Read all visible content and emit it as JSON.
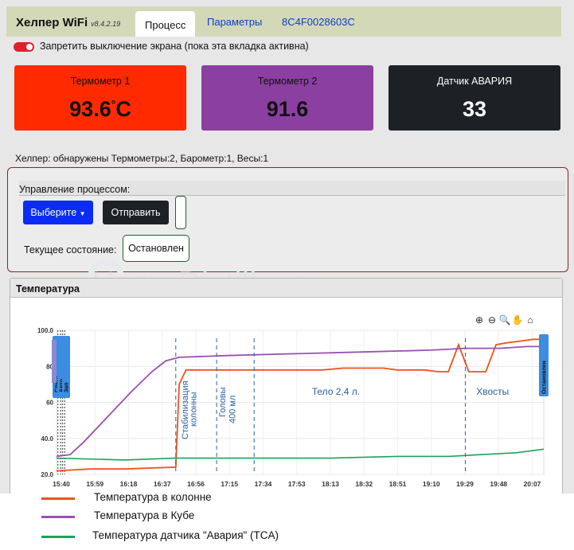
{
  "header": {
    "brand": "Хелпер WiFi",
    "version": "v8.4.2.19",
    "tabs": [
      {
        "label": "Процесс",
        "active": true
      },
      {
        "label": "Параметры",
        "active": false
      },
      {
        "label": "8C4F0028603C",
        "active": false
      }
    ]
  },
  "screen_toggle": {
    "label": "Запретить выключение экрана (пока эта вкладка активна)",
    "on": true
  },
  "cards": [
    {
      "label": "Термометр 1",
      "value": "93.6",
      "unit": "C",
      "bg": "#ff2a00",
      "fg": "#111111"
    },
    {
      "label": "Термометр 2",
      "value": "91.6",
      "bg": "#8b3fa0",
      "fg": "#111111"
    },
    {
      "label": "Датчик АВАРИЯ",
      "value": "33",
      "bg": "#1d2024",
      "fg": "#ffffff"
    }
  ],
  "detected": "Хелпер: обнаружены Термометры:2, Барометр:1, Весы:1",
  "process": {
    "title": "Управление процессом:",
    "select_label": "Выберите",
    "send_label": "Отправить",
    "state_label": "Текущее состояние:",
    "state_value": "Остановлен"
  },
  "temperature_panel": {
    "title": "Температура"
  },
  "watermark": "HomeDistiller.ru",
  "chart_toolbar": [
    "zoom-in-icon",
    "zoom-out-icon",
    "zoom-icon",
    "pan-icon",
    "home-icon"
  ],
  "chart_data": {
    "type": "line",
    "ylim": [
      20,
      100
    ],
    "yticks": [
      "20.0",
      "40.0",
      "60",
      "80",
      "100.0"
    ],
    "xticks": [
      "15:40",
      "15:59",
      "16:18",
      "16:37",
      "16:56",
      "17:15",
      "17:34",
      "17:53",
      "18:13",
      "18:32",
      "18:51",
      "19:10",
      "19:29",
      "19:48",
      "20:07"
    ],
    "series": [
      {
        "name": "Температура в колонне",
        "color": "#f0521e",
        "points": [
          [
            0,
            22
          ],
          [
            10,
            23
          ],
          [
            20,
            23
          ],
          [
            35,
            24
          ],
          [
            36,
            70
          ],
          [
            38,
            78
          ],
          [
            44,
            78
          ],
          [
            50,
            78
          ],
          [
            56,
            78
          ],
          [
            60,
            78
          ],
          [
            66,
            78
          ],
          [
            72,
            78
          ],
          [
            78,
            78
          ],
          [
            84,
            79
          ],
          [
            90,
            79
          ],
          [
            96,
            79
          ],
          [
            100,
            78
          ],
          [
            104,
            78
          ],
          [
            108,
            78
          ],
          [
            112,
            77
          ],
          [
            115,
            77
          ],
          [
            118,
            92
          ],
          [
            121,
            77
          ],
          [
            126,
            77
          ],
          [
            129,
            92
          ],
          [
            132,
            93
          ],
          [
            136,
            94
          ],
          [
            140,
            95
          ],
          [
            143,
            95
          ]
        ]
      },
      {
        "name": "Температура в Кубе",
        "color": "#9b50b0",
        "points": [
          [
            0,
            30
          ],
          [
            4,
            31
          ],
          [
            8,
            38
          ],
          [
            15,
            52
          ],
          [
            22,
            66
          ],
          [
            28,
            77
          ],
          [
            32,
            83
          ],
          [
            36,
            85
          ],
          [
            50,
            86
          ],
          [
            70,
            87
          ],
          [
            90,
            88
          ],
          [
            110,
            89
          ],
          [
            120,
            90
          ],
          [
            130,
            90
          ],
          [
            138,
            91
          ],
          [
            143,
            91
          ]
        ]
      },
      {
        "name": "Температура датчика \"Авария\" (TCA)",
        "color": "#1aa55a",
        "points": [
          [
            0,
            29
          ],
          [
            20,
            28
          ],
          [
            35,
            29
          ],
          [
            60,
            29
          ],
          [
            80,
            29
          ],
          [
            100,
            30
          ],
          [
            115,
            30
          ],
          [
            125,
            31
          ],
          [
            135,
            32
          ],
          [
            143,
            34
          ]
        ]
      }
    ],
    "annotations": [
      {
        "text": "Стабилизация колонны",
        "x": 35
      },
      {
        "text": "Головы 400 мл",
        "x": 47
      },
      {
        "text": "Тело 2,4 л.",
        "x": 82
      },
      {
        "text": "Хвосты",
        "x": 128
      }
    ],
    "event_labels": [
      {
        "text": "Спирт",
        "x": 1.2
      },
      {
        "text": "Авто",
        "x": 1.8
      },
      {
        "text": "Зап",
        "x": 2.4
      },
      {
        "text": "Остановлен",
        "x": 143
      }
    ],
    "grid": true
  },
  "legend": [
    {
      "label": "Температура в колонне",
      "color": "#f0521e"
    },
    {
      "label": "Температура в Кубе",
      "color": "#9b50b0"
    },
    {
      "label": "Температура датчика \"Авария\" (TCA)",
      "color": "#1aa55a"
    }
  ]
}
